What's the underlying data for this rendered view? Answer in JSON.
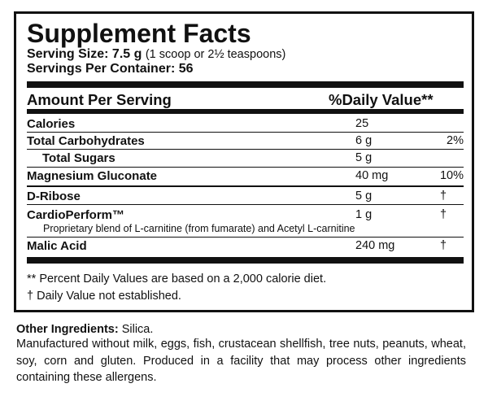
{
  "title": "Supplement Facts",
  "serving_size": {
    "label": "Serving Size: 7.5 g",
    "note": "(1 scoop or 2½ teaspoons)"
  },
  "servings_per_container": "Servings Per Container: 56",
  "header": {
    "amount": "Amount Per Serving",
    "daily_value": "%Daily Value**"
  },
  "rows": [
    {
      "name": "Calories",
      "amount": "25",
      "dv": null
    },
    {
      "name": "Total Carbohydrates",
      "amount": "6 g",
      "dv": "2%"
    },
    {
      "name": "Total Sugars",
      "amount": "5 g",
      "dv": null
    },
    {
      "name": "Magnesium Gluconate",
      "amount": "40 mg",
      "dv": "10%"
    },
    {
      "name": "D-Ribose",
      "amount": "5 g",
      "dv": "†"
    },
    {
      "name": "CardioPerform™",
      "amount": "1 g",
      "dv": "†",
      "description": "Proprietary blend of L-carnitine (from fumarate) and Acetyl L-carnitine"
    },
    {
      "name": "Malic Acid",
      "amount": "240 mg",
      "dv": "†"
    }
  ],
  "footnotes": [
    "** Percent Daily Values are based on a 2,000 calorie diet.",
    "† Daily Value not established."
  ],
  "other_ingredients": {
    "label": "Other Ingredients:",
    "value": "Silica."
  },
  "allergens": "Manufactured without milk, eggs, fish, crustacean shellfish, tree nuts, peanuts, wheat, soy, corn and gluten. Produced in a facility that may process other ingredients containing these allergens."
}
